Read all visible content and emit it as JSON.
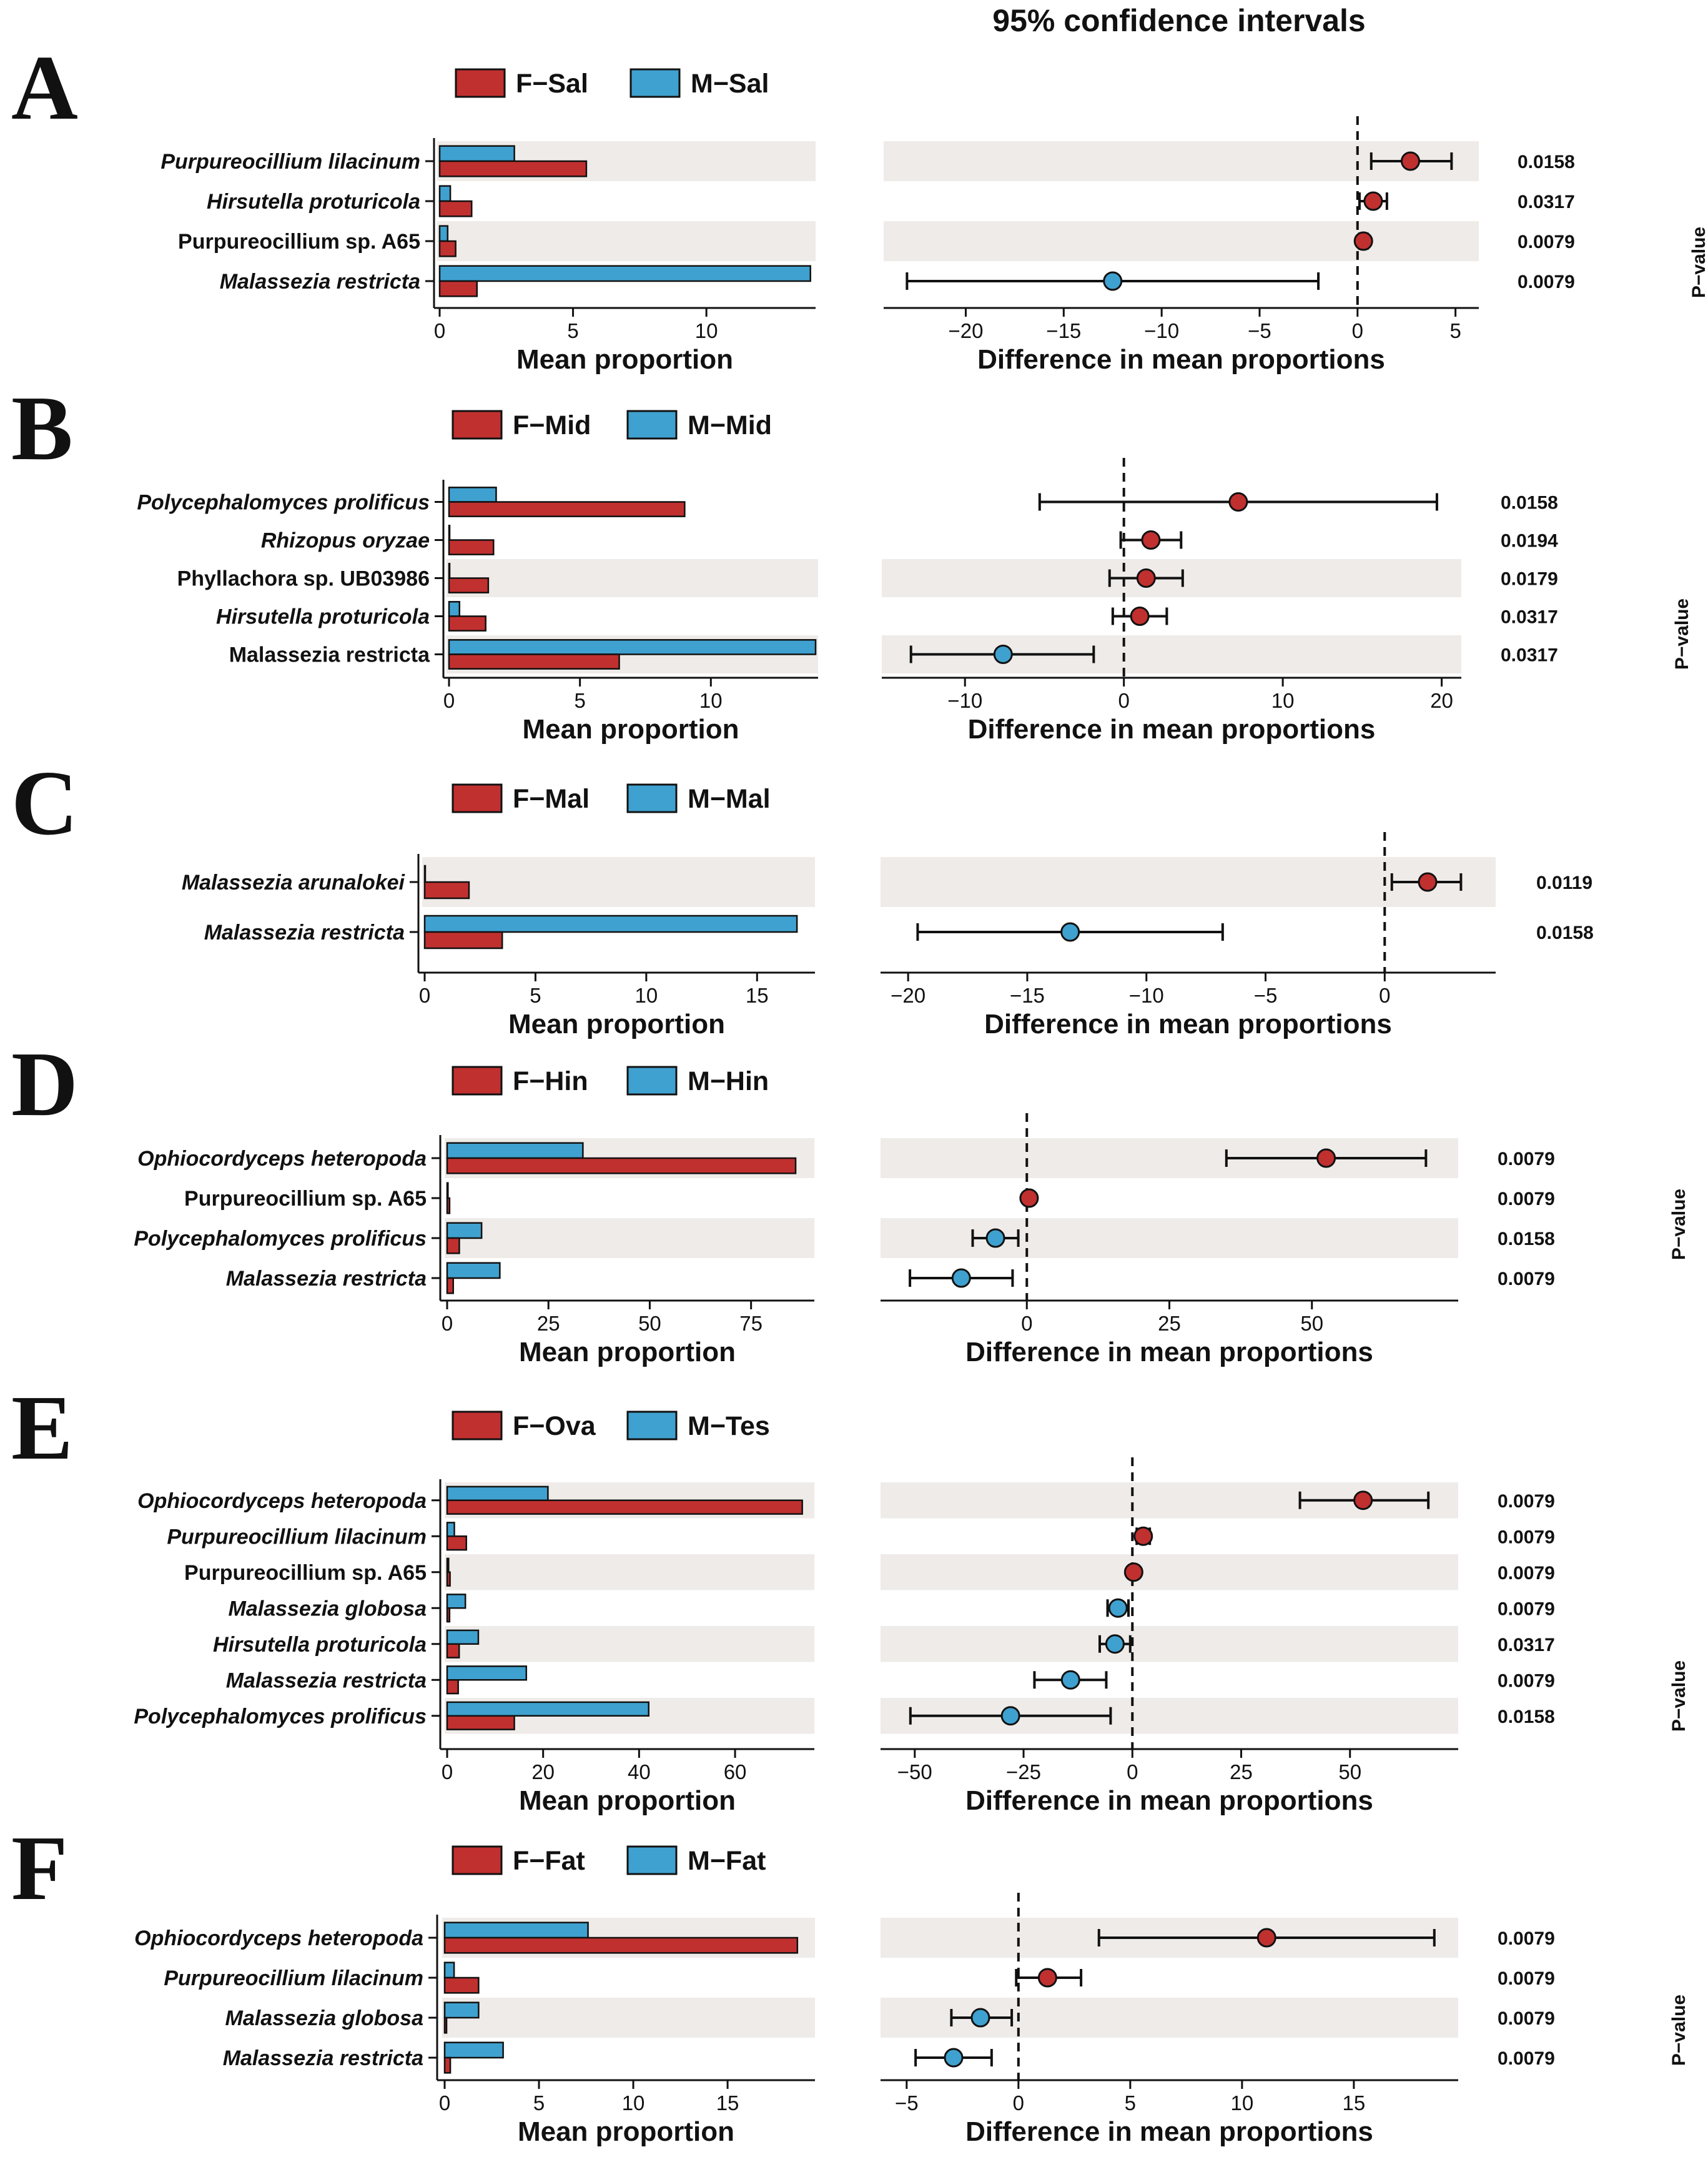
{
  "chart_data": {
    "type": "bar",
    "title": "95% confidence intervals",
    "colors": {
      "female": "#c0302f",
      "male": "#3fa1cf",
      "stripe": "#efebe8"
    },
    "labels": {
      "left_xlabel": "Mean proportion",
      "right_xlabel": "Difference in mean proportions",
      "pvalue_label": "P−value"
    },
    "panels": [
      {
        "letter": "A",
        "legend": [
          "F−Sal",
          "M−Sal"
        ],
        "left_xlim": [
          0,
          14
        ],
        "left_ticks": [
          0,
          5,
          10
        ],
        "right_xlim": [
          -24,
          6
        ],
        "right_ticks": [
          -20,
          -15,
          -10,
          -5,
          0,
          5
        ],
        "rows": [
          {
            "name": "Purpureocillium lilacinum",
            "italic": true,
            "female": 5.5,
            "male": 2.8,
            "diff": 2.7,
            "ci": [
              0.7,
              4.8
            ],
            "pvalue": "0.0158"
          },
          {
            "name": "Hirsutella proturicola",
            "italic": true,
            "female": 1.2,
            "male": 0.4,
            "diff": 0.8,
            "ci": [
              0.1,
              1.5
            ],
            "pvalue": "0.0317"
          },
          {
            "name": "Purpureocillium sp. A65",
            "italic": false,
            "female": 0.6,
            "male": 0.3,
            "diff": 0.3,
            "ci": [
              0.1,
              0.5
            ],
            "pvalue": "0.0079"
          },
          {
            "name": "Malassezia restricta",
            "italic": true,
            "female": 1.4,
            "male": 13.9,
            "diff": -12.5,
            "ci": [
              -23.0,
              -2.0
            ],
            "pvalue": "0.0079"
          }
        ]
      },
      {
        "letter": "B",
        "legend": [
          "F−Mid",
          "M−Mid"
        ],
        "left_xlim": [
          0,
          14
        ],
        "left_ticks": [
          0,
          5,
          10
        ],
        "right_xlim": [
          -15,
          21
        ],
        "right_ticks": [
          -10,
          0,
          10,
          20
        ],
        "rows": [
          {
            "name": "Polycephalomyces prolificus",
            "italic": true,
            "female": 9.0,
            "male": 1.8,
            "diff": 7.2,
            "ci": [
              -5.3,
              19.7
            ],
            "pvalue": "0.0158"
          },
          {
            "name": "Rhizopus oryzae",
            "italic": true,
            "female": 1.7,
            "male": 0.0,
            "diff": 1.7,
            "ci": [
              -0.2,
              3.6
            ],
            "pvalue": "0.0194"
          },
          {
            "name": "Phyllachora sp. UB03986",
            "italic": false,
            "female": 1.5,
            "male": 0.0,
            "diff": 1.4,
            "ci": [
              -0.9,
              3.7
            ],
            "pvalue": "0.0179"
          },
          {
            "name": "Hirsutella proturicola",
            "italic": true,
            "female": 1.4,
            "male": 0.4,
            "diff": 1.0,
            "ci": [
              -0.7,
              2.7
            ],
            "pvalue": "0.0317"
          },
          {
            "name": "Malassezia restricta",
            "italic": false,
            "female": 6.5,
            "male": 14.0,
            "diff": -7.6,
            "ci": [
              -13.4,
              -1.9
            ],
            "pvalue": "0.0317"
          }
        ]
      },
      {
        "letter": "C",
        "legend": [
          "F−Mal",
          "M−Mal"
        ],
        "left_xlim": [
          0,
          17.5
        ],
        "left_ticks": [
          0,
          5,
          10,
          15
        ],
        "right_xlim": [
          -21,
          4.5
        ],
        "right_ticks": [
          -20,
          -15,
          -10,
          -5,
          0
        ],
        "rows": [
          {
            "name": "Malassezia arunalokei",
            "italic": true,
            "female": 2.0,
            "male": 0.0,
            "diff": 1.8,
            "ci": [
              0.3,
              3.2
            ],
            "pvalue": "0.0119"
          },
          {
            "name": "Malassezia restricta",
            "italic": true,
            "female": 3.5,
            "male": 16.8,
            "diff": -13.2,
            "ci": [
              -19.6,
              -6.8
            ],
            "pvalue": "0.0158"
          }
        ]
      },
      {
        "letter": "D",
        "legend": [
          "F−Hin",
          "M−Hin"
        ],
        "left_xlim": [
          0,
          90
        ],
        "left_ticks": [
          0,
          25,
          50,
          75
        ],
        "right_xlim": [
          -25,
          75
        ],
        "right_ticks": [
          0,
          25,
          50
        ],
        "rows": [
          {
            "name": "Ophiocordyceps heteropoda",
            "italic": true,
            "female": 86.0,
            "male": 33.5,
            "diff": 52.5,
            "ci": [
              35.0,
              70.0
            ],
            "pvalue": "0.0079"
          },
          {
            "name": "Purpureocillium sp. A65",
            "italic": false,
            "female": 0.6,
            "male": 0.2,
            "diff": 0.4,
            "ci": [
              0.1,
              0.8
            ],
            "pvalue": "0.0079"
          },
          {
            "name": "Polycephalomyces prolificus",
            "italic": true,
            "female": 3.0,
            "male": 8.5,
            "diff": -5.5,
            "ci": [
              -9.5,
              -1.5
            ],
            "pvalue": "0.0158"
          },
          {
            "name": "Malassezia restricta",
            "italic": true,
            "female": 1.5,
            "male": 13.0,
            "diff": -11.5,
            "ci": [
              -20.5,
              -2.5
            ],
            "pvalue": "0.0079"
          }
        ]
      },
      {
        "letter": "E",
        "legend": [
          "F−Ova",
          "M−Tes"
        ],
        "left_xlim": [
          0,
          76
        ],
        "left_ticks": [
          0,
          20,
          40,
          60
        ],
        "right_xlim": [
          -57,
          74
        ],
        "right_ticks": [
          -50,
          -25,
          0,
          25,
          50
        ],
        "rows": [
          {
            "name": "Ophiocordyceps heteropoda",
            "italic": true,
            "female": 74.0,
            "male": 21.0,
            "diff": 53.0,
            "ci": [
              38.5,
              68.0
            ],
            "pvalue": "0.0079"
          },
          {
            "name": "Purpureocillium lilacinum",
            "italic": true,
            "female": 4.0,
            "male": 1.5,
            "diff": 2.5,
            "ci": [
              1.0,
              4.0
            ],
            "pvalue": "0.0079"
          },
          {
            "name": "Purpureocillium sp. A65",
            "italic": false,
            "female": 0.6,
            "male": 0.3,
            "diff": 0.3,
            "ci": [
              0.0,
              0.6
            ],
            "pvalue": "0.0079"
          },
          {
            "name": "Malassezia globosa",
            "italic": true,
            "female": 0.5,
            "male": 3.8,
            "diff": -3.3,
            "ci": [
              -5.7,
              -0.9
            ],
            "pvalue": "0.0079"
          },
          {
            "name": "Hirsutella proturicola",
            "italic": true,
            "female": 2.5,
            "male": 6.5,
            "diff": -4.0,
            "ci": [
              -7.5,
              -0.5
            ],
            "pvalue": "0.0317"
          },
          {
            "name": "Malassezia restricta",
            "italic": true,
            "female": 2.3,
            "male": 16.5,
            "diff": -14.2,
            "ci": [
              -22.5,
              -6.0
            ],
            "pvalue": "0.0079"
          },
          {
            "name": "Polycephalomyces prolificus",
            "italic": true,
            "female": 14.0,
            "male": 42.0,
            "diff": -28.0,
            "ci": [
              -51.0,
              -5.0
            ],
            "pvalue": "0.0158"
          }
        ]
      },
      {
        "letter": "F",
        "legend": [
          "F−Fat",
          "M−Fat"
        ],
        "left_xlim": [
          0,
          19.5
        ],
        "left_ticks": [
          0,
          5,
          10,
          15
        ],
        "right_xlim": [
          -6,
          19.5
        ],
        "right_ticks": [
          -5,
          0,
          5,
          10,
          15
        ],
        "rows": [
          {
            "name": "Ophiocordyceps heteropoda",
            "italic": true,
            "female": 18.7,
            "male": 7.6,
            "diff": 11.1,
            "ci": [
              3.6,
              18.6
            ],
            "pvalue": "0.0079"
          },
          {
            "name": "Purpureocillium lilacinum",
            "italic": true,
            "female": 1.8,
            "male": 0.5,
            "diff": 1.3,
            "ci": [
              -0.1,
              2.8
            ],
            "pvalue": "0.0079"
          },
          {
            "name": "Malassezia globosa",
            "italic": true,
            "female": 0.1,
            "male": 1.8,
            "diff": -1.7,
            "ci": [
              -3.0,
              -0.3
            ],
            "pvalue": "0.0079"
          },
          {
            "name": "Malassezia restricta",
            "italic": true,
            "female": 0.3,
            "male": 3.1,
            "diff": -2.9,
            "ci": [
              -4.6,
              -1.2
            ],
            "pvalue": "0.0079"
          }
        ]
      }
    ]
  }
}
